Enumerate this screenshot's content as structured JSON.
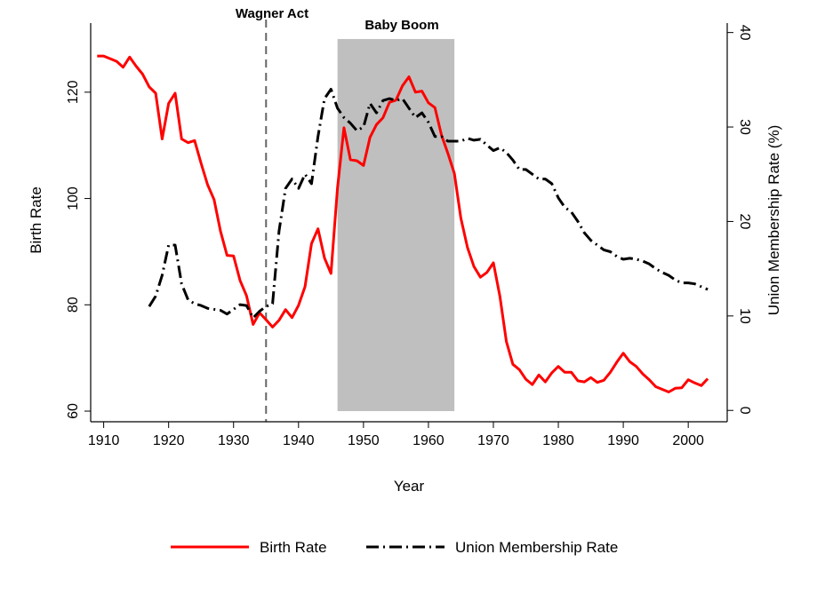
{
  "chart_data": {
    "type": "line",
    "xlabel": "Year",
    "ylabel_left": "Birth Rate",
    "ylabel_right": "Union Membership Rate (%)",
    "xlim": [
      1908,
      2006
    ],
    "ylim_left": [
      58,
      133
    ],
    "ylim_right": [
      -1.2,
      41
    ],
    "x_ticks": [
      1910,
      1920,
      1930,
      1940,
      1950,
      1960,
      1970,
      1980,
      1990,
      2000
    ],
    "y_left_ticks": [
      60,
      80,
      100,
      120
    ],
    "y_right_ticks": [
      0,
      10,
      20,
      30,
      40
    ],
    "grid": false,
    "legend_position": "bottom",
    "annotations": {
      "vline": {
        "x": 1935,
        "label": "Wagner Act"
      },
      "band": {
        "x_start": 1946,
        "x_end": 1964,
        "label": "Baby Boom",
        "color": "#bfbfbf"
      }
    },
    "series": [
      {
        "name": "Birth Rate",
        "axis": "left",
        "color": "#ff0000",
        "style": "solid",
        "x": [
          1909,
          1910,
          1911,
          1912,
          1913,
          1914,
          1915,
          1916,
          1917,
          1918,
          1919,
          1920,
          1921,
          1922,
          1923,
          1924,
          1925,
          1926,
          1927,
          1928,
          1929,
          1930,
          1931,
          1932,
          1933,
          1934,
          1935,
          1936,
          1937,
          1938,
          1939,
          1940,
          1941,
          1942,
          1943,
          1944,
          1945,
          1946,
          1947,
          1948,
          1949,
          1950,
          1951,
          1952,
          1953,
          1954,
          1955,
          1956,
          1957,
          1958,
          1959,
          1960,
          1961,
          1962,
          1963,
          1964,
          1965,
          1966,
          1967,
          1968,
          1969,
          1970,
          1971,
          1972,
          1973,
          1974,
          1975,
          1976,
          1977,
          1978,
          1979,
          1980,
          1981,
          1982,
          1983,
          1984,
          1985,
          1986,
          1987,
          1988,
          1989,
          1990,
          1991,
          1992,
          1993,
          1994,
          1995,
          1996,
          1997,
          1998,
          1999,
          2000,
          2001,
          2002,
          2003
        ],
        "values": [
          126.8,
          126.8,
          126.3,
          125.8,
          124.7,
          126.6,
          124.9,
          123.4,
          121.0,
          119.8,
          111.2,
          117.9,
          119.8,
          111.2,
          110.5,
          110.9,
          106.6,
          102.6,
          99.8,
          93.8,
          89.3,
          89.2,
          84.6,
          81.7,
          76.3,
          78.5,
          77.2,
          75.8,
          77.1,
          79.1,
          77.6,
          79.9,
          83.4,
          91.5,
          94.3,
          88.8,
          85.9,
          101.9,
          113.3,
          107.3,
          107.1,
          106.2,
          111.5,
          113.9,
          115.2,
          118.1,
          118.5,
          121.2,
          122.9,
          120.0,
          120.2,
          118.0,
          117.1,
          112.0,
          108.5,
          104.7,
          96.3,
          90.8,
          87.2,
          85.2,
          86.1,
          87.9,
          81.6,
          73.1,
          68.8,
          67.8,
          66.0,
          65.0,
          66.8,
          65.5,
          67.2,
          68.4,
          67.3,
          67.3,
          65.7,
          65.5,
          66.3,
          65.4,
          65.8,
          67.3,
          69.2,
          70.9,
          69.3,
          68.4,
          67.0,
          65.9,
          64.6,
          64.1,
          63.6,
          64.3,
          64.4,
          65.9,
          65.3,
          64.8,
          66.1
        ]
      },
      {
        "name": "Union Membership Rate",
        "axis": "right",
        "color": "#000000",
        "style": "dash-dot",
        "x": [
          1917,
          1918,
          1919,
          1920,
          1921,
          1922,
          1923,
          1924,
          1925,
          1926,
          1927,
          1928,
          1929,
          1930,
          1931,
          1932,
          1933,
          1934,
          1935,
          1936,
          1937,
          1938,
          1939,
          1940,
          1941,
          1942,
          1943,
          1944,
          1945,
          1946,
          1947,
          1948,
          1949,
          1950,
          1951,
          1952,
          1953,
          1954,
          1955,
          1956,
          1957,
          1958,
          1959,
          1960,
          1961,
          1962,
          1963,
          1964,
          1965,
          1966,
          1967,
          1968,
          1969,
          1970,
          1971,
          1972,
          1973,
          1974,
          1975,
          1976,
          1977,
          1978,
          1979,
          1980,
          1981,
          1982,
          1983,
          1984,
          1985,
          1986,
          1987,
          1988,
          1989,
          1990,
          1991,
          1992,
          1993,
          1994,
          1995,
          1996,
          1997,
          1998,
          1999,
          2000,
          2001,
          2002,
          2003
        ],
        "values": [
          11.0,
          12.1,
          14.3,
          17.5,
          17.5,
          13.4,
          11.7,
          11.3,
          11.1,
          10.8,
          10.7,
          10.6,
          10.2,
          10.7,
          11.2,
          11.1,
          9.8,
          10.5,
          11.0,
          11.3,
          19.0,
          23.5,
          24.5,
          23.5,
          25.0,
          24.0,
          29.0,
          33.0,
          34.0,
          32.0,
          31.0,
          30.4,
          29.6,
          30.0,
          32.5,
          31.5,
          32.8,
          33.0,
          32.8,
          33.0,
          32.0,
          31.0,
          31.5,
          30.5,
          29.0,
          29.0,
          28.5,
          28.5,
          28.5,
          28.8,
          28.6,
          28.7,
          28.1,
          27.5,
          27.8,
          27.3,
          26.5,
          25.5,
          25.5,
          25.0,
          24.5,
          24.5,
          24.0,
          22.5,
          21.5,
          21.0,
          20.0,
          18.8,
          18.0,
          17.5,
          17.0,
          16.8,
          16.3,
          16.0,
          16.1,
          16.0,
          15.8,
          15.5,
          15.0,
          14.6,
          14.3,
          13.8,
          13.5,
          13.5,
          13.4,
          13.1,
          12.8
        ]
      }
    ]
  }
}
